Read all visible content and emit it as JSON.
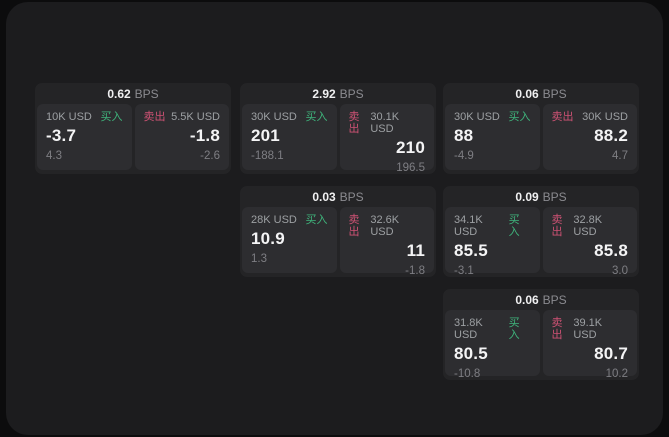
{
  "side_labels": {
    "buy": "买入",
    "sell": "卖出"
  },
  "colors": {
    "background": "#0c0c0d",
    "panel": "#1c1c1e",
    "card": "#242426",
    "pane": "#2d2d30",
    "buy_accent": "#3fb57c",
    "sell_accent": "#cf5274",
    "value_text": "#f4f4f5",
    "muted_text": "#9da0a3"
  },
  "cards": [
    {
      "bps": "0.62",
      "bps_unit": "BPS",
      "buy": {
        "amount": "10K USD",
        "side": "买入",
        "value": "-3.7",
        "sub": "4.3"
      },
      "sell": {
        "amount": "5.5K USD",
        "side": "卖出",
        "value": "-1.8",
        "sub": "-2.6"
      }
    },
    {
      "bps": "2.92",
      "bps_unit": "BPS",
      "buy": {
        "amount": "30K USD",
        "side": "买入",
        "value": "201",
        "sub": "-188.1"
      },
      "sell": {
        "amount": "30.1K USD",
        "side": "卖出",
        "value": "210",
        "sub": "196.5"
      }
    },
    {
      "bps": "0.06",
      "bps_unit": "BPS",
      "buy": {
        "amount": "30K USD",
        "side": "买入",
        "value": "88",
        "sub": "-4.9"
      },
      "sell": {
        "amount": "30K USD",
        "side": "卖出",
        "value": "88.2",
        "sub": "4.7"
      }
    },
    {
      "bps": "0.03",
      "bps_unit": "BPS",
      "buy": {
        "amount": "28K USD",
        "side": "买入",
        "value": "10.9",
        "sub": "1.3"
      },
      "sell": {
        "amount": "32.6K USD",
        "side": "卖出",
        "value": "11",
        "sub": "-1.8"
      }
    },
    {
      "bps": "0.09",
      "bps_unit": "BPS",
      "buy": {
        "amount": "34.1K USD",
        "side": "买入",
        "value": "85.5",
        "sub": "-3.1"
      },
      "sell": {
        "amount": "32.8K USD",
        "side": "卖出",
        "value": "85.8",
        "sub": "3.0"
      }
    },
    {
      "bps": "0.06",
      "bps_unit": "BPS",
      "buy": {
        "amount": "31.8K USD",
        "side": "买入",
        "value": "80.5",
        "sub": "-10.8"
      },
      "sell": {
        "amount": "39.1K USD",
        "side": "卖出",
        "value": "80.7",
        "sub": "10.2"
      }
    }
  ]
}
